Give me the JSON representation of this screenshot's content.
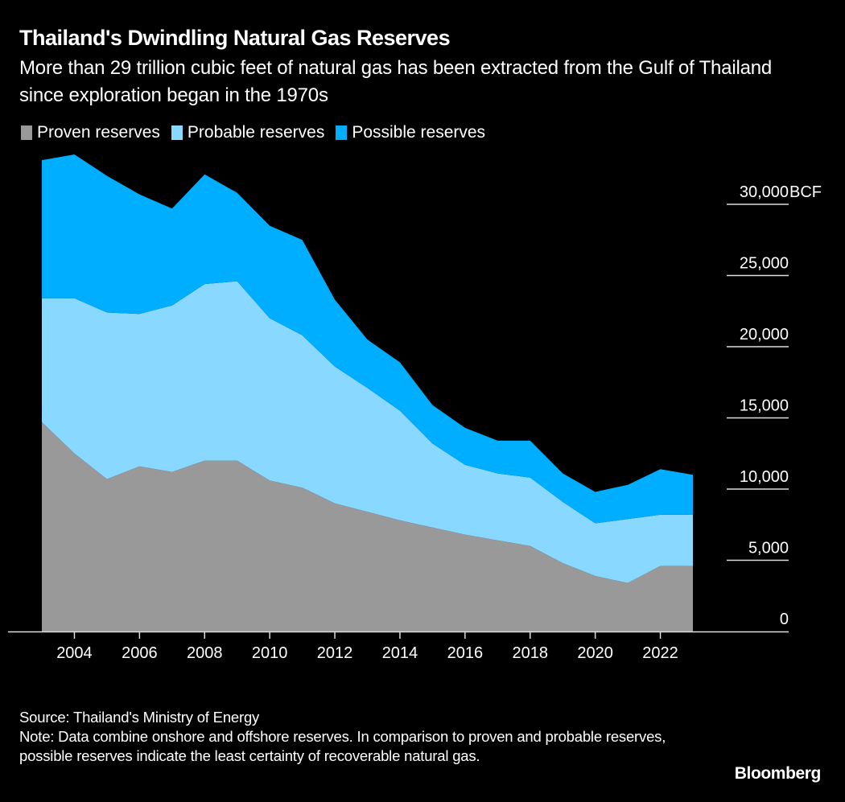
{
  "chart_data": {
    "type": "area",
    "stacked": true,
    "title": "Thailand's Dwindling Natural Gas Reserves",
    "subtitle": "More than 29 trillion cubic feet of natural gas has been extracted from the Gulf of Thailand since exploration began in the 1970s",
    "xlabel": "",
    "ylabel": "BCF",
    "y_unit_label": "BCF",
    "ylim": [
      0,
      30000
    ],
    "y_ticks": [
      0,
      5000,
      10000,
      15000,
      20000,
      25000,
      30000
    ],
    "y_tick_labels": [
      "0",
      "5,000",
      "10,000",
      "15,000",
      "20,000",
      "25,000",
      "30,000"
    ],
    "x_ticks": [
      2004,
      2006,
      2008,
      2010,
      2012,
      2014,
      2016,
      2018,
      2020,
      2022
    ],
    "x_tick_labels": [
      "2004",
      "2006",
      "2008",
      "2010",
      "2012",
      "2014",
      "2016",
      "2018",
      "2020",
      "2022"
    ],
    "xlim": [
      2003,
      2023
    ],
    "legend_position": "top-left",
    "grid": false,
    "x": [
      2003,
      2004,
      2005,
      2006,
      2007,
      2008,
      2009,
      2010,
      2011,
      2012,
      2013,
      2014,
      2015,
      2016,
      2017,
      2018,
      2019,
      2020,
      2021,
      2022,
      2023
    ],
    "series": [
      {
        "name": "Proven reserves",
        "color": "#999999",
        "values": [
          14700,
          12500,
          10700,
          11600,
          11200,
          12000,
          12000,
          10600,
          10100,
          9000,
          8400,
          7800,
          7300,
          6800,
          6400,
          6000,
          4800,
          3900,
          3400,
          4600,
          4600
        ]
      },
      {
        "name": "Probable reserves",
        "color": "#89d8ff",
        "values": [
          8700,
          10900,
          11700,
          10700,
          11700,
          12400,
          12600,
          11400,
          10700,
          9600,
          8700,
          7700,
          5900,
          4900,
          4700,
          4800,
          4300,
          3700,
          4500,
          3600,
          3600
        ]
      },
      {
        "name": "Possible reserves",
        "color": "#00aeff",
        "values": [
          9700,
          10100,
          9600,
          8400,
          6800,
          7700,
          6200,
          6500,
          6700,
          4700,
          3400,
          3400,
          2700,
          2600,
          2300,
          2600,
          2000,
          2200,
          2400,
          3200,
          2800
        ]
      }
    ]
  },
  "legend": [
    {
      "label": "Proven reserves",
      "color": "#999999"
    },
    {
      "label": "Probable reserves",
      "color": "#89d8ff"
    },
    {
      "label": "Possible reserves",
      "color": "#00aeff"
    }
  ],
  "footer": {
    "source": "Source: Thailand's Ministry of Energy",
    "note": "Note: Data combine onshore and offshore reserves. In comparison to proven and probable reserves, possible reserves indicate the least certainty of recoverable natural gas."
  },
  "brand": "Bloomberg"
}
